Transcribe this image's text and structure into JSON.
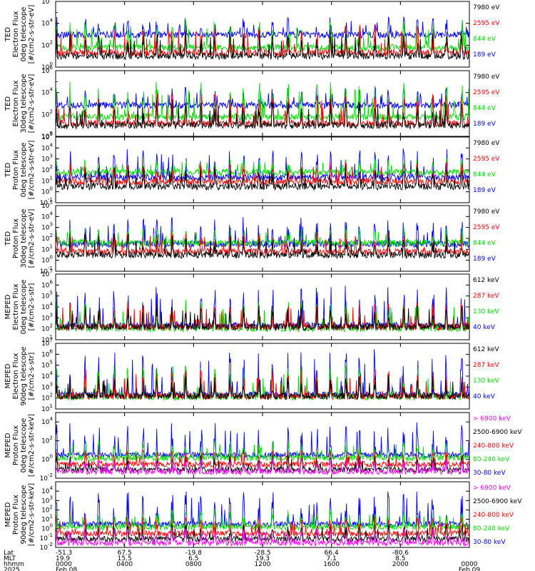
{
  "colors": {
    "blue": "#0000ff",
    "green": "#00dd00",
    "red": "#ff0000",
    "black": "#000000",
    "magenta": "#ff00ff"
  },
  "chart_data": [
    {
      "type": "line",
      "title": "",
      "ylabel_lines": [
        "TED",
        "Electron Flux",
        "0deg telescope",
        "[#/cm2-s-str-eV]"
      ],
      "yscale": "log",
      "ylim": [
        1,
        1000000
      ],
      "yticks": [
        {
          "exp": "0",
          "value": 1
        },
        {
          "exp": "2",
          "value": 100
        },
        {
          "exp": "4",
          "value": 10000
        },
        {
          "exp": "6",
          "value": 1000000
        }
      ],
      "series": [
        {
          "name": "7980 eV",
          "color": "#000000",
          "base": 10,
          "peak": 3000
        },
        {
          "name": "2595 eV",
          "color": "#ff0000",
          "base": 20,
          "peak": 8000
        },
        {
          "name": "844 eV",
          "color": "#00dd00",
          "base": 60,
          "peak": 20000
        },
        {
          "name": "189 eV",
          "color": "#0000ff",
          "base": 900,
          "peak": 40000
        }
      ]
    },
    {
      "type": "line",
      "title": "",
      "ylabel_lines": [
        "TED",
        "Electron Flux",
        "30deg telescope",
        "[#/cm2-s-str-eV]"
      ],
      "yscale": "log",
      "ylim": [
        1,
        1000000
      ],
      "yticks": [
        {
          "exp": "0",
          "value": 1
        },
        {
          "exp": "2",
          "value": 100
        },
        {
          "exp": "4",
          "value": 10000
        },
        {
          "exp": "6",
          "value": 1000000
        }
      ],
      "series": [
        {
          "name": "7980 eV",
          "color": "#000000",
          "base": 10,
          "peak": 3000
        },
        {
          "name": "2595 eV",
          "color": "#ff0000",
          "base": 15,
          "peak": 8000
        },
        {
          "name": "844 eV",
          "color": "#00dd00",
          "base": 60,
          "peak": 100000
        },
        {
          "name": "189 eV",
          "color": "#0000ff",
          "base": 700,
          "peak": 30000
        }
      ]
    },
    {
      "type": "line",
      "title": "",
      "ylabel_lines": [
        "TED",
        "Proton Flux",
        "0deg telescope",
        "[#/cm2-s-str-eV]"
      ],
      "yscale": "log",
      "ylim": [
        0.1,
        100000
      ],
      "yticks": [
        {
          "exp": "-1",
          "value": 0.1
        },
        {
          "exp": "0",
          "value": 1
        },
        {
          "exp": "1",
          "value": 10
        },
        {
          "exp": "2",
          "value": 100
        },
        {
          "exp": "3",
          "value": 1000
        },
        {
          "exp": "4",
          "value": 10000
        },
        {
          "exp": "5",
          "value": 100000
        }
      ],
      "series": [
        {
          "name": "7980 eV",
          "color": "#000000",
          "base": 3,
          "peak": 200
        },
        {
          "name": "2595 eV",
          "color": "#ff0000",
          "base": 8,
          "peak": 500
        },
        {
          "name": "844 eV",
          "color": "#00dd00",
          "base": 60,
          "peak": 1000
        },
        {
          "name": "189 eV",
          "color": "#0000ff",
          "base": 20,
          "peak": 10000
        }
      ]
    },
    {
      "type": "line",
      "title": "",
      "ylabel_lines": [
        "TED",
        "Proton Flux",
        "30deg telescope",
        "[#/cm2-s-str-eV]"
      ],
      "yscale": "log",
      "ylim": [
        0.1,
        100000
      ],
      "yticks": [
        {
          "exp": "-1",
          "value": 0.1
        },
        {
          "exp": "0",
          "value": 1
        },
        {
          "exp": "1",
          "value": 10
        },
        {
          "exp": "2",
          "value": 100
        },
        {
          "exp": "3",
          "value": 1000
        },
        {
          "exp": "4",
          "value": 10000
        },
        {
          "exp": "5",
          "value": 100000
        }
      ],
      "series": [
        {
          "name": "7980 eV",
          "color": "#000000",
          "base": 3,
          "peak": 300
        },
        {
          "name": "2595 eV",
          "color": "#ff0000",
          "base": 6,
          "peak": 400
        },
        {
          "name": "844 eV",
          "color": "#00dd00",
          "base": 40,
          "peak": 1000
        },
        {
          "name": "189 eV",
          "color": "#0000ff",
          "base": 30,
          "peak": 10000
        }
      ]
    },
    {
      "type": "line",
      "title": "",
      "ylabel_lines": [
        "MEPED",
        "Electron Flux",
        "0deg telescope",
        "[#/cm2-s-str]"
      ],
      "yscale": "log",
      "ylim": [
        10,
        10000000
      ],
      "yticks": [
        {
          "exp": "1",
          "value": 10
        },
        {
          "exp": "2",
          "value": 100
        },
        {
          "exp": "3",
          "value": 1000
        },
        {
          "exp": "4",
          "value": 10000
        },
        {
          "exp": "5",
          "value": 100000
        },
        {
          "exp": "6",
          "value": 1000000
        },
        {
          "exp": "7",
          "value": 10000000
        }
      ],
      "series": [
        {
          "name": "612 keV",
          "color": "#000000",
          "base": 150,
          "peak": 20000
        },
        {
          "name": "287 keV",
          "color": "#ff0000",
          "base": 150,
          "peak": 30000
        },
        {
          "name": "130 keV",
          "color": "#00dd00",
          "base": 110,
          "peak": 50000
        },
        {
          "name": "40 keV",
          "color": "#0000ff",
          "base": 200,
          "peak": 1000000
        }
      ]
    },
    {
      "type": "line",
      "title": "",
      "ylabel_lines": [
        "MEPED",
        "Electron Flux",
        "90deg telescope",
        "[#/cm2-s-str]"
      ],
      "yscale": "log",
      "ylim": [
        10,
        10000000
      ],
      "yticks": [
        {
          "exp": "1",
          "value": 10
        },
        {
          "exp": "2",
          "value": 100
        },
        {
          "exp": "3",
          "value": 1000
        },
        {
          "exp": "4",
          "value": 10000
        },
        {
          "exp": "5",
          "value": 100000
        },
        {
          "exp": "6",
          "value": 1000000
        },
        {
          "exp": "7",
          "value": 10000000
        }
      ],
      "series": [
        {
          "name": "612 keV",
          "color": "#000000",
          "base": 150,
          "peak": 10000
        },
        {
          "name": "287 keV",
          "color": "#ff0000",
          "base": 150,
          "peak": 50000
        },
        {
          "name": "130 keV",
          "color": "#00dd00",
          "base": 130,
          "peak": 100000
        },
        {
          "name": "40 keV",
          "color": "#0000ff",
          "base": 200,
          "peak": 3000000
        }
      ]
    },
    {
      "type": "line",
      "title": "",
      "ylabel_lines": [
        "MEPED",
        "Proton Flux",
        "0deg telescope",
        "[#/cm2-s-str-keV]"
      ],
      "yscale": "log",
      "ylim": [
        0.01,
        100000
      ],
      "yticks": [
        {
          "exp": "-2",
          "value": 0.01
        },
        {
          "exp": "0",
          "value": 1
        },
        {
          "exp": "2",
          "value": 100
        },
        {
          "exp": "4",
          "value": 10000
        }
      ],
      "series": [
        {
          "name": "> 6900 keV",
          "color": "#ff00ff",
          "base": 0.05,
          "peak": 1
        },
        {
          "name": "2500-6900 keV",
          "color": "#000000",
          "base": 0.08,
          "peak": 3
        },
        {
          "name": "240-800 keV",
          "color": "#ff0000",
          "base": 0.3,
          "peak": 10
        },
        {
          "name": "80-240 keV",
          "color": "#00dd00",
          "base": 1.5,
          "peak": 100
        },
        {
          "name": "30-80 keV",
          "color": "#0000ff",
          "base": 3,
          "peak": 10000
        }
      ]
    },
    {
      "type": "line",
      "title": "",
      "ylabel_lines": [
        "MEPED",
        "Proton Flux",
        "90deg telescope",
        "[#/cm2-s-str-keV]"
      ],
      "yscale": "log",
      "ylim": [
        0.01,
        100000
      ],
      "yticks": [
        {
          "exp": "-2",
          "value": 0.01
        },
        {
          "exp": "-1",
          "value": 0.1
        },
        {
          "exp": "0",
          "value": 1
        },
        {
          "exp": "1",
          "value": 10
        },
        {
          "exp": "2",
          "value": 100
        },
        {
          "exp": "3",
          "value": 1000
        },
        {
          "exp": "4",
          "value": 10000
        }
      ],
      "series": [
        {
          "name": "> 6900 keV",
          "color": "#ff00ff",
          "base": 0.03,
          "peak": 1
        },
        {
          "name": "2500-6900 keV",
          "color": "#000000",
          "base": 0.08,
          "peak": 3
        },
        {
          "name": "240-800 keV",
          "color": "#ff0000",
          "base": 0.3,
          "peak": 20
        },
        {
          "name": "80-240 keV",
          "color": "#00dd00",
          "base": 1.5,
          "peak": 100
        },
        {
          "name": "30-80 keV",
          "color": "#0000ff",
          "base": 3,
          "peak": 10000
        }
      ]
    }
  ],
  "x_axis": {
    "rows": [
      {
        "label": "Lat",
        "values": [
          "-51.3",
          "67.5",
          "-19.8",
          "-28.5",
          "66.4",
          "-80.6",
          ""
        ]
      },
      {
        "label": "MLT",
        "values": [
          "19.9",
          "15.5",
          "6.5",
          "19.3",
          "7.1",
          "8.5",
          ""
        ]
      },
      {
        "label": "hhmm",
        "values": [
          "0000",
          "0400",
          "0800",
          "1200",
          "1600",
          "2000",
          "0000"
        ]
      },
      {
        "label": "2025",
        "values": [
          "Feb 08",
          "",
          "",
          "",
          "",
          "",
          "Feb 09"
        ]
      }
    ],
    "tick_hours": [
      0,
      4,
      8,
      12,
      16,
      20,
      24
    ],
    "xlim_hours": [
      0,
      24
    ]
  }
}
